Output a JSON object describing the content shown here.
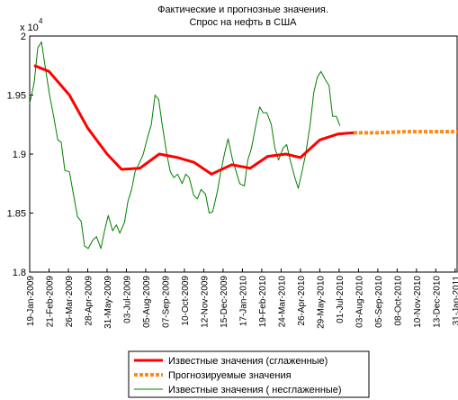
{
  "chart_data": {
    "type": "line",
    "title": [
      "Фактические и прогнозные значения.",
      "Спрос на нефть в США"
    ],
    "y_exponent": "x 10",
    "y_exponent_power": "4",
    "xlim": [
      0,
      22.1
    ],
    "ylim": [
      1.8,
      2
    ],
    "yticks": [
      {
        "value": 1.8,
        "label": "1.8"
      },
      1.85,
      {
        "value": 1.9,
        "label": "1.9"
      },
      1.95,
      2
    ],
    "xticks": [
      {
        "value": 0,
        "label": "19-Jan-2009"
      },
      {
        "value": 1,
        "label": "21-Feb-2009"
      },
      {
        "value": 2,
        "label": "26-Mar-2009"
      },
      {
        "value": 3,
        "label": "28-Apr-2009"
      },
      {
        "value": 4,
        "label": "31-May-2009"
      },
      {
        "value": 5,
        "label": "03-Jul-2009"
      },
      {
        "value": 6,
        "label": "05-Aug-2009"
      },
      {
        "value": 7,
        "label": "07-Sep-2009"
      },
      {
        "value": 8,
        "label": "10-Oct-2009"
      },
      {
        "value": 9,
        "label": "12-Nov-2009"
      },
      {
        "value": 10,
        "label": "15-Dec-2009"
      },
      {
        "value": 11,
        "label": "17-Jan-2010"
      },
      {
        "value": 12,
        "label": "19-Feb-2010"
      },
      {
        "value": 13,
        "label": "24-Mar-2010"
      },
      {
        "value": 14,
        "label": "26-Apr-2010"
      },
      {
        "value": 15,
        "label": "29-May-2010"
      },
      {
        "value": 16,
        "label": "01-Jul-2010"
      },
      {
        "value": 17,
        "label": "03-Aug-2010"
      },
      {
        "value": 18,
        "label": "05-Sep-2010"
      },
      {
        "value": 19,
        "label": "08-Oct-2010"
      },
      {
        "value": 20,
        "label": "10-Nov-2010"
      },
      {
        "value": 21,
        "label": "13-Dec-2010"
      },
      {
        "value": 22,
        "label": "31-Jan-2011"
      }
    ],
    "legend": "bottom",
    "series": [
      {
        "name": "Известные значения (сглаженные)",
        "color": "#ff0000",
        "style": "solid",
        "width": 3,
        "x": [
          0.23,
          1.0,
          2.05,
          3.0,
          4.0,
          4.75,
          5.7,
          6.7,
          7.65,
          8.5,
          9.4,
          10.45,
          11.4,
          12.3,
          13.25,
          14.0,
          15.0,
          15.95,
          16.75
        ],
        "values": [
          1.975,
          1.97,
          1.95,
          1.922,
          1.9,
          1.887,
          1.888,
          1.9,
          1.897,
          1.893,
          1.883,
          1.891,
          1.888,
          1.898,
          1.9,
          1.897,
          1.912,
          1.917,
          1.918
        ]
      },
      {
        "name": "Прогнозируемые значения",
        "color": "#ff8c1a",
        "style": "dashed",
        "width": 4,
        "x": [
          16.75,
          18.05,
          19.45,
          20.85,
          22.1
        ],
        "values": [
          1.918,
          1.918,
          1.919,
          1.919,
          1.919
        ]
      },
      {
        "name": "Известные значения ( несглаженные)",
        "color": "#007f00",
        "style": "solid",
        "width": 1,
        "x": [
          0,
          0.23,
          0.42,
          0.61,
          0.79,
          1.03,
          1.26,
          1.45,
          1.63,
          1.82,
          2.05,
          2.24,
          2.47,
          2.66,
          2.84,
          3.03,
          3.26,
          3.45,
          3.68,
          3.87,
          4.06,
          4.29,
          4.48,
          4.66,
          4.9,
          5.08,
          5.27,
          5.45,
          5.69,
          5.87,
          6.11,
          6.29,
          6.48,
          6.67,
          6.85,
          7.09,
          7.27,
          7.46,
          7.65,
          7.88,
          8.07,
          8.25,
          8.48,
          8.67,
          8.86,
          9.09,
          9.28,
          9.46,
          9.7,
          9.88,
          10.07,
          10.26,
          10.49,
          10.68,
          10.86,
          11.1,
          11.28,
          11.47,
          11.7,
          11.89,
          12.07,
          12.26,
          12.49,
          12.68,
          12.87,
          13.1,
          13.29,
          13.47,
          13.71,
          13.89,
          14.08,
          14.27,
          14.5,
          14.69,
          14.87,
          15.06,
          15.29,
          15.48,
          15.66,
          15.85,
          16.04
        ],
        "values": [
          1.943,
          1.96,
          1.99,
          1.995,
          1.975,
          1.95,
          1.93,
          1.912,
          1.91,
          1.886,
          1.885,
          1.868,
          1.847,
          1.843,
          1.822,
          1.82,
          1.827,
          1.83,
          1.82,
          1.835,
          1.848,
          1.835,
          1.84,
          1.833,
          1.842,
          1.86,
          1.87,
          1.885,
          1.893,
          1.9,
          1.915,
          1.925,
          1.95,
          1.946,
          1.925,
          1.9,
          1.885,
          1.88,
          1.883,
          1.875,
          1.883,
          1.88,
          1.865,
          1.862,
          1.87,
          1.866,
          1.85,
          1.851,
          1.868,
          1.885,
          1.9,
          1.913,
          1.895,
          1.885,
          1.875,
          1.873,
          1.895,
          1.905,
          1.925,
          1.94,
          1.935,
          1.935,
          1.925,
          1.905,
          1.895,
          1.905,
          1.908,
          1.895,
          1.88,
          1.871,
          1.885,
          1.9,
          1.925,
          1.952,
          1.965,
          1.97,
          1.963,
          1.958,
          1.932,
          1.932,
          1.924
        ]
      }
    ]
  }
}
